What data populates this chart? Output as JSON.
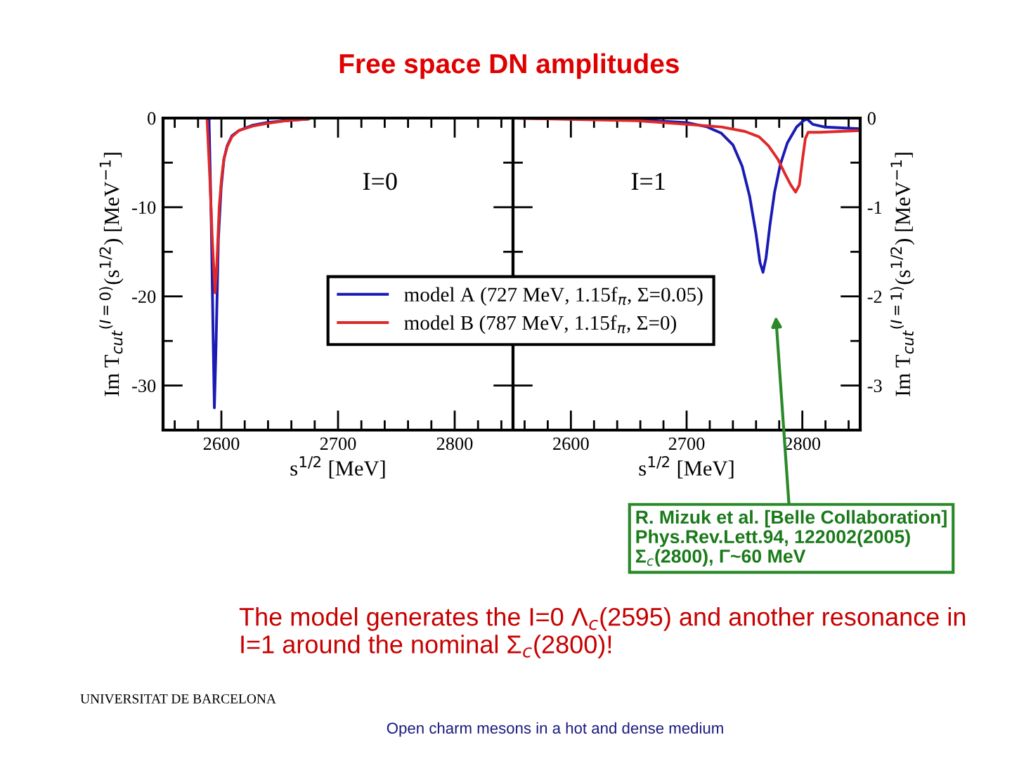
{
  "chart_data": [
    {
      "type": "line",
      "title": "Free space DN amplitudes",
      "xlabel": "s$^{1/2}$ [MeV]",
      "ylabel": "Im T$_{cut}$$^{(I=0)}$(s$^{1/2}$) [MeV$^{−1}$]",
      "annotations": [
        "I=0"
      ],
      "xlim": [
        2550,
        2850
      ],
      "xticks": [
        {
          "value": 2560,
          "label": null
        },
        {
          "value": 2580,
          "label": null
        },
        2600,
        {
          "value": 2620,
          "label": null
        },
        {
          "value": 2640,
          "label": null
        },
        {
          "value": 2660,
          "label": null
        },
        {
          "value": 2680,
          "label": null
        },
        2700,
        {
          "value": 2720,
          "label": null
        },
        {
          "value": 2740,
          "label": null
        },
        {
          "value": 2760,
          "label": null
        },
        {
          "value": 2780,
          "label": null
        },
        2800,
        {
          "value": 2820,
          "label": null
        },
        {
          "value": 2840,
          "label": null
        }
      ],
      "ylim": [
        -35,
        0
      ],
      "yticks": [
        -30,
        {
          "value": -25,
          "label": null
        },
        -20,
        {
          "value": -15,
          "label": null
        },
        -10,
        {
          "value": -5,
          "label": null
        },
        0
      ],
      "grid": false,
      "legend": "right",
      "marker": "none",
      "line_style": "solid",
      "series": [
        {
          "name": "model A (727 MeV, 1.15f$_{π}$, Σ=0.05)",
          "color": "#1a1ab4",
          "x": [
            2589.4,
            2591.4,
            2593,
            2594,
            2595.4,
            2597.4,
            2599.8,
            2602.2,
            2605,
            2609,
            2615,
            2627,
            2639,
            2655,
            2675
          ],
          "values": [
            0,
            -12,
            -25,
            -32.5,
            -25.6,
            -13.6,
            -7.8,
            -4.6,
            -3.1,
            -2.0,
            -1.4,
            -0.8,
            -0.5,
            -0.3,
            -0.1
          ]
        },
        {
          "name": "model B (787 MeV, 1.15f$_{π}$, Σ=0)",
          "color": "#e02828",
          "x": [
            2587.7,
            2590.1,
            2592.2,
            2594.6,
            2596.2,
            2598.2,
            2600.2,
            2602.2,
            2605,
            2609,
            2615,
            2627,
            2639,
            2655,
            2675
          ],
          "values": [
            0,
            -6.7,
            -13.6,
            -19.6,
            -16.2,
            -9.9,
            -6.7,
            -4.6,
            -3.2,
            -2.1,
            -1.4,
            -0.9,
            -0.6,
            -0.3,
            -0.1
          ]
        }
      ]
    },
    {
      "type": "line",
      "xlabel": "s$^{1/2}$ [MeV]",
      "ylabel": "Im T$_{cut}$$^{(I=1)}$(s$^{1/2}$) [MeV$^{−1}$]",
      "annotations": [
        "I=1",
        "R. Mizuk et al. [Belle Collaboration]\nPhys.Rev.Lett.94, 122002(2005)\nΣ$_{c}$(2800), Γ~60 MeV",
        "The model generates the I=0 Λ$_{c}$(2595) and another resonance in\nI=1 around the nominal Σ$_{c}$(2800)!",
        "UNIVERSITAT DE BARCELONA",
        "Open charm mesons in a hot and dense medium"
      ],
      "xlim": [
        2550,
        2850
      ],
      "xticks": [
        {
          "value": 2560,
          "label": null
        },
        {
          "value": 2580,
          "label": null
        },
        2600,
        {
          "value": 2620,
          "label": null
        },
        {
          "value": 2640,
          "label": null
        },
        {
          "value": 2660,
          "label": null
        },
        {
          "value": 2680,
          "label": null
        },
        2700,
        {
          "value": 2720,
          "label": null
        },
        {
          "value": 2740,
          "label": null
        },
        {
          "value": 2760,
          "label": null
        },
        {
          "value": 2780,
          "label": null
        },
        2800,
        {
          "value": 2820,
          "label": null
        },
        {
          "value": 2840,
          "label": null
        }
      ],
      "ylim": [
        -3.5,
        0
      ],
      "yticks": [
        -3,
        {
          "value": -2.5,
          "label": null
        },
        -2,
        {
          "value": -1.5,
          "label": null
        },
        -1,
        {
          "value": -0.5,
          "label": null
        },
        0
      ],
      "grid": false,
      "marker": "none",
      "line_style": "solid",
      "series": [
        {
          "color": "#1a1ab4",
          "x": [
            2550,
            2657,
            2700,
            2718,
            2730,
            2740,
            2748,
            2754.5,
            2760,
            2763.4,
            2766,
            2768.6,
            2772,
            2776,
            2781,
            2787,
            2795,
            2801,
            2804,
            2809,
            2819,
            2850
          ],
          "values": [
            0,
            -0.02,
            -0.05,
            -0.1,
            -0.17,
            -0.3,
            -0.54,
            -0.88,
            -1.3,
            -1.62,
            -1.73,
            -1.57,
            -1.2,
            -0.83,
            -0.52,
            -0.28,
            -0.1,
            -0.03,
            -0.01,
            -0.07,
            -0.1,
            -0.12
          ]
        },
        {
          "color": "#e02828",
          "x": [
            2550,
            2657,
            2700,
            2730,
            2750.4,
            2762.6,
            2770.7,
            2778.8,
            2784.8,
            2790,
            2794.2,
            2797.4,
            2800.2,
            2802.6,
            2805,
            2815,
            2850
          ],
          "values": [
            0,
            -0.03,
            -0.07,
            -0.1,
            -0.15,
            -0.21,
            -0.31,
            -0.46,
            -0.62,
            -0.75,
            -0.83,
            -0.75,
            -0.46,
            -0.23,
            -0.16,
            -0.16,
            -0.14
          ]
        }
      ]
    }
  ]
}
